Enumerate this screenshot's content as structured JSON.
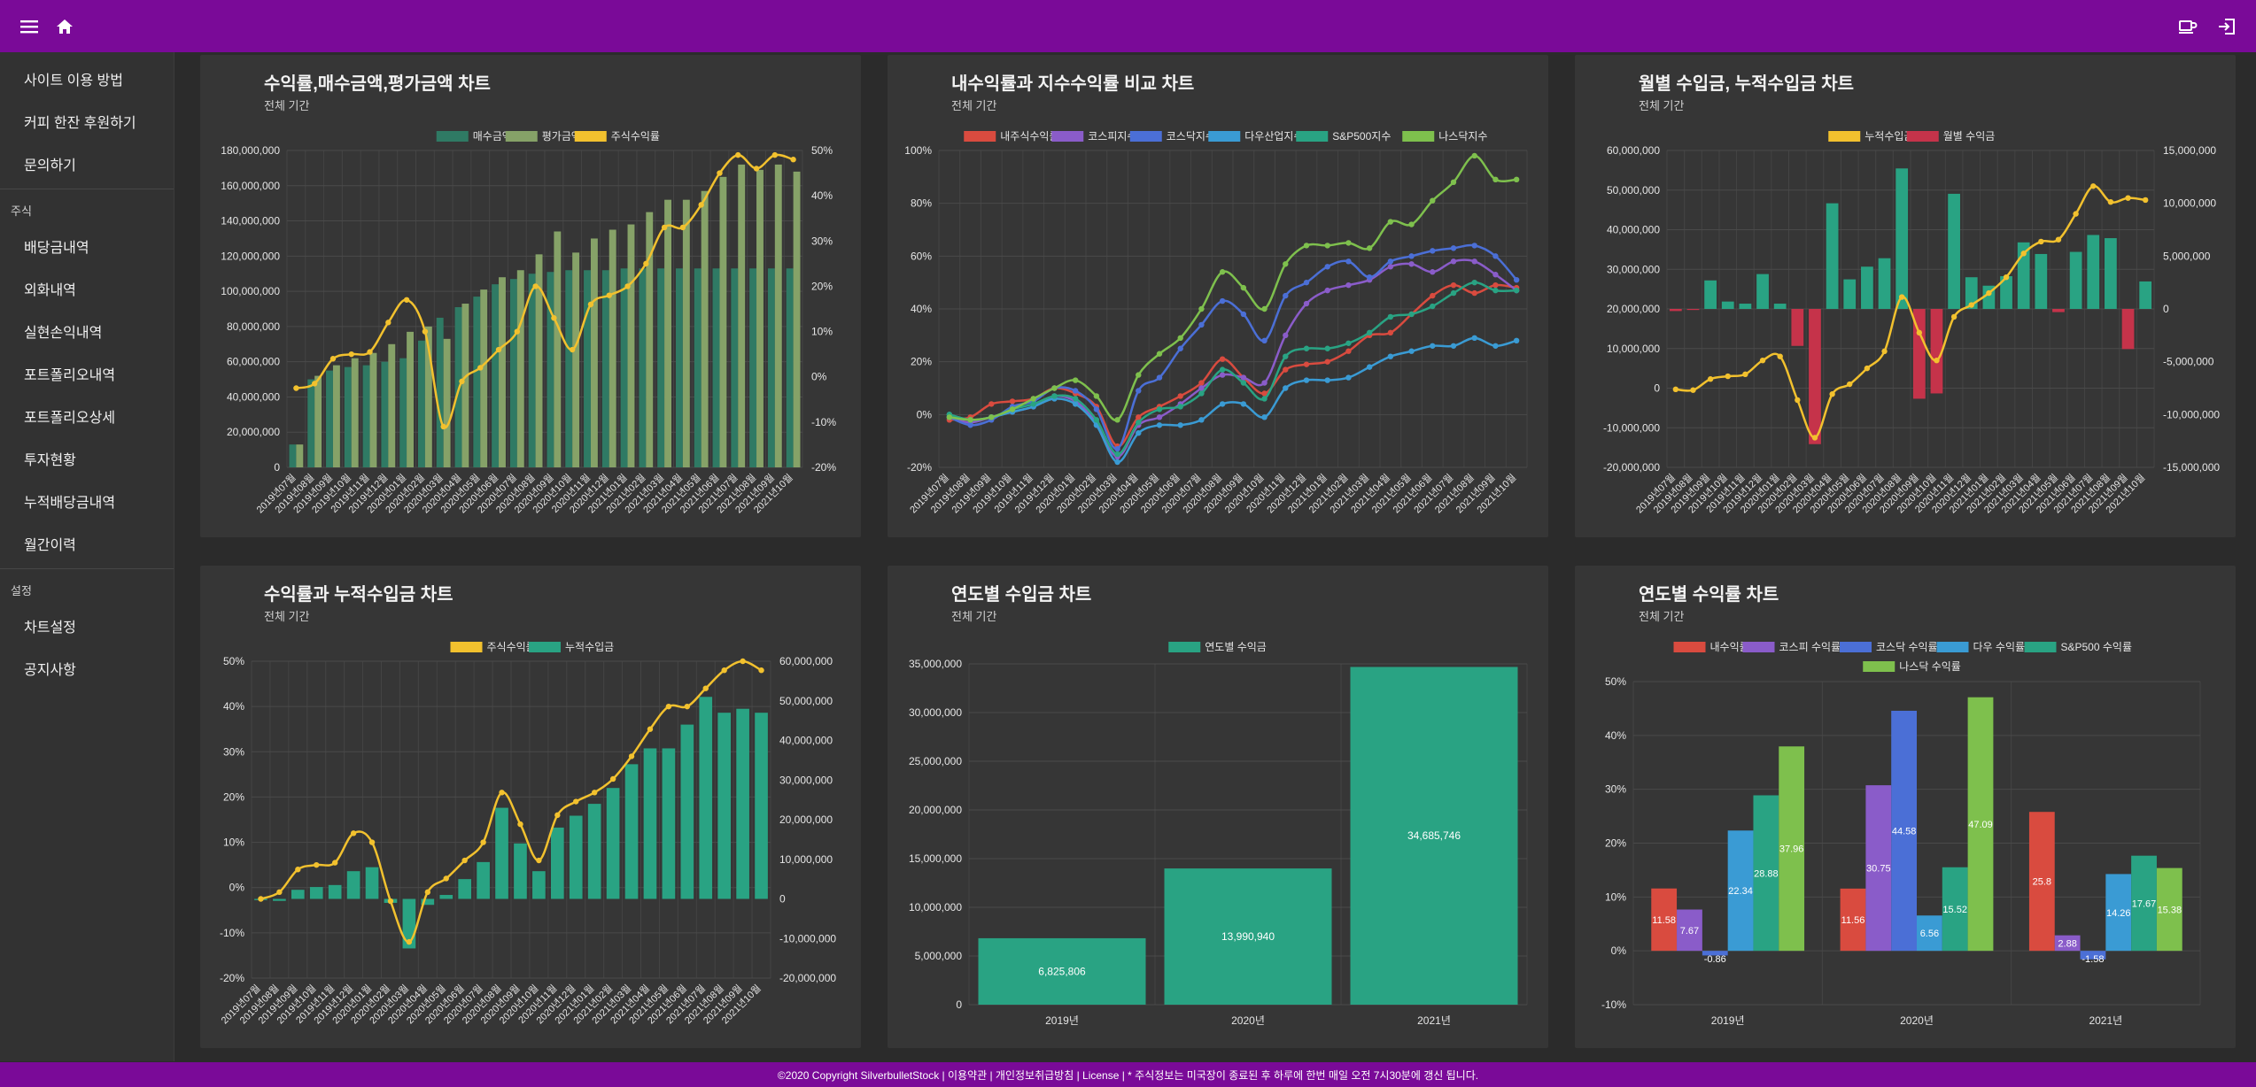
{
  "header": {
    "menu_icon": "hamburger-icon",
    "home_icon": "home-icon",
    "coffee_icon": "coffee-icon",
    "logout_icon": "logout-icon"
  },
  "sidebar": {
    "top_items": [
      "사이트 이용 방법",
      "커피 한잔 후원하기",
      "문의하기"
    ],
    "section_stock": "주식",
    "stock_items": [
      "배당금내역",
      "외화내역",
      "실현손익내역",
      "포트폴리오내역",
      "포트폴리오상세",
      "투자현황",
      "누적배당금내역",
      "월간이력"
    ],
    "section_settings": "설정",
    "settings_items": [
      "차트설정",
      "공지사항"
    ]
  },
  "footer": {
    "text": "©2020 Copyright SilverbulletStock | 이용약관 | 개인정보취급방침 | License | * 주식정보는 미국장이 종료된 후 하루에 한번 매일 오전 7시30분에 갱신 됩니다."
  },
  "colors": {
    "purple": "#7a0a98",
    "teal": "#29a383",
    "sage": "#86a268",
    "darkteal": "#2f7a64",
    "yellow": "#f2c12e",
    "red": "#d94b3f",
    "violet": "#8a5cc9",
    "blue": "#4b6fd6",
    "sky": "#3a9bd4",
    "green": "#7ec04d",
    "crimson": "#c5334a"
  },
  "months": [
    "2019년07월",
    "2019년08월",
    "2019년09월",
    "2019년10월",
    "2019년11월",
    "2019년12월",
    "2020년01월",
    "2020년02월",
    "2020년03월",
    "2020년04월",
    "2020년05월",
    "2020년06월",
    "2020년07월",
    "2020년08월",
    "2020년09월",
    "2020년10월",
    "2020년11월",
    "2020년12월",
    "2021년01월",
    "2021년02월",
    "2021년03월",
    "2021년04월",
    "2021년05월",
    "2021년06월",
    "2021년07월",
    "2021년08월",
    "2021년09월",
    "2021년10월"
  ],
  "chart_data": [
    {
      "id": "c1",
      "type": "bar",
      "title": "수익률,매수금액,평가금액 차트",
      "subtitle": "전체 기간",
      "legend": [
        "매수금액",
        "평가금액",
        "주식수익률"
      ],
      "y_left_ticks": [
        "180,000,000",
        "160,000,000",
        "140,000,000",
        "120,000,000",
        "100,000,000",
        "80,000,000",
        "60,000,000",
        "40,000,000",
        "20,000,000",
        "0"
      ],
      "y_right_ticks": [
        "50%",
        "40%",
        "30%",
        "20%",
        "10%",
        "0%",
        "-10%",
        "-20%"
      ],
      "ylim_left": [
        0,
        180000000
      ],
      "ylim_right": [
        -20,
        50
      ],
      "x_labels": [
        "2019년07월",
        "2019년08월",
        "2019년09월",
        "2019년10월",
        "2019년11월",
        "2019년12월",
        "2020년01월",
        "2020년02월",
        "2020년03월",
        "2020년04월",
        "2020년05월",
        "2020년06월",
        "2020년07월",
        "2020년08월",
        "2020년09월",
        "2020년10월",
        "2020년11월",
        "2020년12월",
        "2021년01월",
        "2021년02월",
        "2021년03월",
        "2021년04월",
        "2021년05월",
        "2021년06월",
        "2021년07월",
        "2021년08월",
        "2021년09월",
        "2021년10월"
      ],
      "series": [
        {
          "name": "매수금액",
          "kind": "bar",
          "values": [
            13000000,
            50000000,
            55000000,
            57000000,
            58000000,
            60000000,
            62000000,
            72000000,
            85000000,
            91000000,
            97000000,
            104000000,
            107000000,
            110000000,
            111000000,
            112000000,
            112000000,
            112000000,
            113000000,
            113000000,
            113000000,
            113000000,
            113000000,
            113000000,
            113000000,
            113000000,
            113000000,
            113000000
          ]
        },
        {
          "name": "평가금액",
          "kind": "bar",
          "values": [
            13000000,
            52000000,
            58000000,
            62000000,
            65000000,
            70000000,
            77000000,
            80000000,
            73000000,
            93000000,
            101000000,
            108000000,
            112000000,
            121000000,
            134000000,
            122000000,
            130000000,
            135000000,
            138000000,
            145000000,
            152000000,
            152000000,
            157000000,
            165000000,
            172000000,
            169000000,
            172000000,
            168000000
          ]
        },
        {
          "name": "주식수익률",
          "kind": "line",
          "values": [
            -2.5,
            -1.5,
            4,
            5,
            5.5,
            12,
            17,
            10,
            -11,
            -1,
            2,
            6,
            10,
            20,
            13,
            6,
            16,
            18,
            20,
            25,
            33,
            33,
            38,
            45,
            49,
            46,
            49,
            48
          ]
        }
      ]
    },
    {
      "id": "c2",
      "type": "line",
      "title": "내수익률과 지수수익률 비교 차트",
      "subtitle": "전체 기간",
      "legend": [
        "내주식수익률",
        "코스피지수",
        "코스닥지수",
        "다우산업지수",
        "S&P500지수",
        "나스닥지수"
      ],
      "y_ticks": [
        "100%",
        "80%",
        "60%",
        "40%",
        "20%",
        "0%",
        "-20%"
      ],
      "ylim": [
        -20,
        100
      ],
      "x_labels": [
        "2019년07월",
        "2019년08월",
        "2019년09월",
        "2019년10월",
        "2019년11월",
        "2019년12월",
        "2020년01월",
        "2020년02월",
        "2020년03월",
        "2020년04월",
        "2020년05월",
        "2020년06월",
        "2020년07월",
        "2020년08월",
        "2020년09월",
        "2020년10월",
        "2020년11월",
        "2020년12월",
        "2021년01월",
        "2021년02월",
        "2021년03월",
        "2021년04월",
        "2021년05월",
        "2021년06월",
        "2021년07월",
        "2021년08월",
        "2021년09월",
        "2021년10월"
      ],
      "series": [
        {
          "name": "내주식수익률",
          "values": [
            -2,
            -1,
            4,
            5,
            6,
            10,
            8,
            3,
            -12,
            -1,
            3,
            7,
            12,
            21,
            14,
            8,
            17,
            19,
            20,
            24,
            30,
            31,
            38,
            45,
            49,
            46,
            49,
            48
          ]
        },
        {
          "name": "코스피지수",
          "values": [
            -1,
            -3,
            -1,
            1,
            3,
            7,
            5,
            -3,
            -16,
            -4,
            -1,
            4,
            10,
            15,
            14,
            12,
            30,
            42,
            47,
            49,
            51,
            56,
            57,
            54,
            58,
            58,
            53,
            47
          ]
        },
        {
          "name": "코스닥지수",
          "values": [
            -1,
            -4,
            -2,
            3,
            5,
            10,
            9,
            2,
            -13,
            9,
            14,
            25,
            34,
            43,
            38,
            28,
            45,
            50,
            56,
            58,
            52,
            58,
            60,
            62,
            63,
            64,
            60,
            51
          ]
        },
        {
          "name": "다우산업지수",
          "values": [
            0,
            -2,
            -1,
            1,
            3,
            6,
            4,
            -4,
            -18,
            -7,
            -4,
            -4,
            -2,
            4,
            4,
            -1,
            10,
            13,
            13,
            14,
            18,
            22,
            24,
            26,
            26,
            29,
            26,
            28
          ]
        },
        {
          "name": "S&P500지수",
          "values": [
            0,
            -2,
            -1,
            2,
            4,
            7,
            6,
            -2,
            -15,
            -3,
            2,
            3,
            8,
            17,
            12,
            6,
            22,
            25,
            25,
            27,
            31,
            37,
            38,
            41,
            46,
            50,
            47,
            47
          ]
        },
        {
          "name": "나스닥지수",
          "values": [
            -1,
            -2,
            -1,
            2,
            6,
            10,
            13,
            7,
            -2,
            15,
            23,
            29,
            40,
            54,
            48,
            40,
            57,
            64,
            64,
            65,
            63,
            73,
            72,
            81,
            88,
            98,
            89,
            89
          ]
        }
      ]
    },
    {
      "id": "c3",
      "type": "bar",
      "title": "월별 수입금, 누적수입금 차트",
      "subtitle": "전체 기간",
      "legend": [
        "누적수입금",
        "월별 수익금"
      ],
      "y_left_ticks": [
        "60,000,000",
        "50,000,000",
        "40,000,000",
        "30,000,000",
        "20,000,000",
        "10,000,000",
        "0",
        "-10,000,000",
        "-20,000,000"
      ],
      "y_right_ticks": [
        "15,000,000",
        "10,000,000",
        "5,000,000",
        "0",
        "-5,000,000",
        "-10,000,000",
        "-15,000,000"
      ],
      "ylim_left": [
        -20000000,
        60000000
      ],
      "ylim_right": [
        -15000000,
        15000000
      ],
      "x_labels": [
        "2019년07월",
        "2019년08월",
        "2019년09월",
        "2019년10월",
        "2019년11월",
        "2019년12월",
        "2020년01월",
        "2020년02월",
        "2020년03월",
        "2020년04월",
        "2020년05월",
        "2020년06월",
        "2020년07월",
        "2020년08월",
        "2020년09월",
        "2020년10월",
        "2020년11월",
        "2020년12월",
        "2021년01월",
        "2021년02월",
        "2021년03월",
        "2021년04월",
        "2021년05월",
        "2021년06월",
        "2021년07월",
        "2021년08월",
        "2021년09월",
        "2021년10월"
      ],
      "series": [
        {
          "name": "누적수입금",
          "kind": "line",
          "values": [
            -300000,
            -500000,
            2300000,
            3000000,
            3500000,
            7000000,
            8000000,
            -3000000,
            -12500000,
            -1500000,
            1000000,
            5000000,
            9300000,
            23000000,
            14000000,
            7000000,
            18000000,
            21000000,
            24000000,
            28000000,
            34000000,
            37000000,
            37500000,
            44000000,
            51000000,
            47000000,
            48000000,
            47500000
          ]
        },
        {
          "name": "월별 수익금",
          "kind": "bar",
          "values": [
            -200000,
            -100000,
            2700000,
            700000,
            500000,
            3300000,
            500000,
            -3500000,
            -12800000,
            10000000,
            2800000,
            4000000,
            4800000,
            13300000,
            -8500000,
            -8000000,
            10900000,
            3000000,
            2200000,
            3100000,
            6300000,
            5200000,
            -300000,
            5400000,
            7000000,
            6700000,
            -3800000,
            2600000
          ]
        }
      ]
    },
    {
      "id": "c4",
      "type": "bar",
      "title": "수익률과 누적수입금 차트",
      "subtitle": "전체 기간",
      "legend": [
        "주식수익률",
        "누적수입금"
      ],
      "y_left_ticks": [
        "50%",
        "40%",
        "30%",
        "20%",
        "10%",
        "0%",
        "-10%",
        "-20%"
      ],
      "y_right_ticks": [
        "60,000,000",
        "50,000,000",
        "40,000,000",
        "30,000,000",
        "20,000,000",
        "10,000,000",
        "0",
        "-10,000,000",
        "-20,000,000"
      ],
      "ylim_left": [
        -20,
        50
      ],
      "ylim_right": [
        -20000000,
        60000000
      ],
      "x_labels": [
        "2019년07월",
        "2019년08월",
        "2019년09월",
        "2019년10월",
        "2019년11월",
        "2019년12월",
        "2020년01월",
        "2020년02월",
        "2020년03월",
        "2020년04월",
        "2020년05월",
        "2020년06월",
        "2020년07월",
        "2020년08월",
        "2020년09월",
        "2020년10월",
        "2020년11월",
        "2020년12월",
        "2021년01월",
        "2021년02월",
        "2021년03월",
        "2021년04월",
        "2021년05월",
        "2021년06월",
        "2021년07월",
        "2021년08월",
        "2021년09월",
        "2021년10월"
      ],
      "series": [
        {
          "name": "주식수익률",
          "kind": "line",
          "values": [
            -2.5,
            -1,
            4,
            5,
            5.5,
            12,
            10,
            -3,
            -12,
            -1,
            2,
            6,
            10,
            21,
            14,
            6,
            16,
            19,
            21,
            24,
            29,
            35,
            40,
            40,
            44,
            48,
            50,
            48
          ]
        },
        {
          "name": "누적수입금",
          "kind": "bar",
          "values": [
            -300000,
            -500000,
            2300000,
            3000000,
            3500000,
            7000000,
            8000000,
            -1000000,
            -12500000,
            -1500000,
            1000000,
            5000000,
            9300000,
            23000000,
            14000000,
            7000000,
            18000000,
            21000000,
            24000000,
            28000000,
            34000000,
            38000000,
            38000000,
            44000000,
            51000000,
            47000000,
            48000000,
            47000000
          ]
        }
      ]
    },
    {
      "id": "c5",
      "type": "bar",
      "title": "연도별 수입금 차트",
      "subtitle": "전체 기간",
      "legend": [
        "연도별 수익금"
      ],
      "y_ticks": [
        "35,000,000",
        "30,000,000",
        "25,000,000",
        "20,000,000",
        "15,000,000",
        "10,000,000",
        "5,000,000",
        "0"
      ],
      "ylim": [
        0,
        35000000
      ],
      "categories": [
        "2019년",
        "2020년",
        "2021년"
      ],
      "values": [
        6825806,
        13990940,
        34685746
      ],
      "value_labels": [
        "6,825,806",
        "13,990,940",
        "34,685,746"
      ]
    },
    {
      "id": "c6",
      "type": "bar",
      "title": "연도별 수익률 차트",
      "subtitle": "전체 기간",
      "legend": [
        "내수익률",
        "코스피 수익률",
        "코스닥 수익률",
        "다우 수익률",
        "S&P500 수익률",
        "나스닥 수익률"
      ],
      "y_ticks": [
        "50%",
        "40%",
        "30%",
        "20%",
        "10%",
        "0%",
        "-10%"
      ],
      "ylim": [
        -10,
        50
      ],
      "categories": [
        "2019년",
        "2020년",
        "2021년"
      ],
      "series": [
        {
          "name": "내수익률",
          "values": [
            11.58,
            11.56,
            25.8
          ],
          "labels": [
            "11.58",
            "11.56",
            "25.8"
          ]
        },
        {
          "name": "코스피 수익률",
          "values": [
            7.67,
            30.75,
            2.88
          ],
          "labels": [
            "7.67",
            "30.75",
            "2.88"
          ]
        },
        {
          "name": "코스닥 수익률",
          "values": [
            -0.86,
            44.58,
            -1.58
          ],
          "labels": [
            "-0.86",
            "44.58",
            "-1.58"
          ]
        },
        {
          "name": "다우 수익률",
          "values": [
            22.34,
            6.56,
            14.26
          ],
          "labels": [
            "22.34",
            "6.56",
            "14.26"
          ]
        },
        {
          "name": "S&P500 수익률",
          "values": [
            28.88,
            15.52,
            17.67
          ],
          "labels": [
            "28.88",
            "15.52",
            "17.67"
          ]
        },
        {
          "name": "나스닥 수익률",
          "values": [
            37.96,
            47.09,
            15.38
          ],
          "labels": [
            "37.96",
            "47.09",
            "15.38"
          ]
        }
      ]
    }
  ]
}
